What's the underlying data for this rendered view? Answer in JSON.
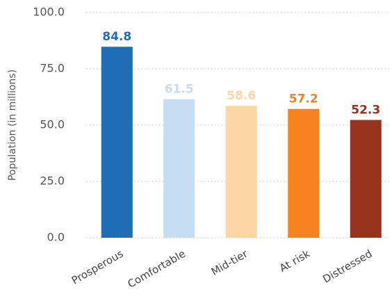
{
  "chart_data": {
    "type": "bar",
    "ylabel": "Population (in millions)",
    "categories": [
      "Prosperous",
      "Comfortable",
      "Mid-tier",
      "At risk",
      "Distressed"
    ],
    "values": [
      84.8,
      61.5,
      58.6,
      57.2,
      52.3
    ],
    "colors": [
      "#1f6db5",
      "#c6dcf2",
      "#fbd7a5",
      "#f5811f",
      "#96321e"
    ],
    "ylim": [
      0,
      100
    ],
    "yticks": [
      {
        "value": 0,
        "label": "0.0"
      },
      {
        "value": 25,
        "label": "25.0"
      },
      {
        "value": 50,
        "label": "50.0"
      },
      {
        "value": 75,
        "label": "75.0"
      },
      {
        "value": 100,
        "label": "100.0"
      }
    ],
    "grid": true
  }
}
